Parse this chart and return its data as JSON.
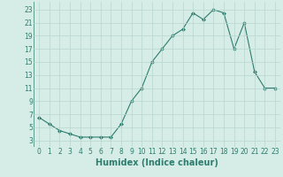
{
  "x": [
    0,
    1,
    2,
    3,
    4,
    5,
    6,
    7,
    8,
    9,
    10,
    11,
    12,
    13,
    14,
    15,
    16,
    17,
    18,
    19,
    20,
    21,
    22,
    23
  ],
  "y": [
    6.5,
    5.5,
    4.5,
    4.0,
    3.5,
    3.5,
    3.5,
    3.5,
    5.5,
    9.0,
    11.0,
    15.0,
    17.0,
    19.0,
    20.0,
    22.5,
    21.5,
    23.0,
    22.5,
    17.0,
    21.0,
    13.5,
    11.0,
    11.0
  ],
  "line_color": "#2e7d6e",
  "marker": "D",
  "marker_size": 2.0,
  "bg_color": "#d6ece6",
  "grid_color": "#b8d4ce",
  "xlabel": "Humidex (Indice chaleur)",
  "xlim": [
    -0.5,
    23.5
  ],
  "ylim": [
    2.0,
    24.2
  ],
  "yticks": [
    3,
    5,
    7,
    9,
    11,
    13,
    15,
    17,
    19,
    21,
    23
  ],
  "xticks": [
    0,
    1,
    2,
    3,
    4,
    5,
    6,
    7,
    8,
    9,
    10,
    11,
    12,
    13,
    14,
    15,
    16,
    17,
    18,
    19,
    20,
    21,
    22,
    23
  ],
  "tick_fontsize": 5.5,
  "xlabel_fontsize": 7.0
}
